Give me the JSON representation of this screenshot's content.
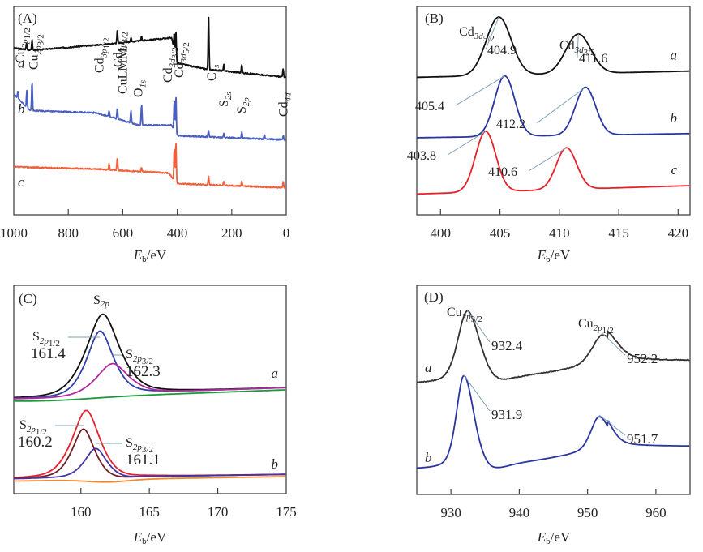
{
  "chart_data": [
    {
      "id": "A",
      "type": "line",
      "panel_label": "(A)",
      "title": "",
      "xlabel": "E_b/eV",
      "xlabel_main": "E",
      "xlabel_sub": "b",
      "xlabel_rest": "/eV",
      "ylabel": "",
      "xlim": [
        1000,
        0
      ],
      "x_reversed": true,
      "xticks": [
        1000,
        800,
        600,
        400,
        200,
        0
      ],
      "xtick_labels": [
        "1000",
        "800",
        "600",
        "400",
        "200",
        "0"
      ],
      "grid": false,
      "series": [
        {
          "name": "a",
          "color": "#111111",
          "baseline": [
            [
              1000,
              0.8
            ],
            [
              930,
              0.79
            ],
            [
              650,
              0.82
            ],
            [
              420,
              0.85
            ],
            [
              405,
              0.73
            ],
            [
              300,
              0.7
            ],
            [
              0,
              0.66
            ]
          ],
          "peaks": [
            [
              953,
              0.03
            ],
            [
              933,
              0.05
            ],
            [
              620,
              0.06
            ],
            [
              570,
              0.02
            ],
            [
              531,
              0.02
            ],
            [
              411,
              0.1
            ],
            [
              405,
              0.15
            ],
            [
              285,
              0.26
            ],
            [
              229,
              0.03
            ],
            [
              163,
              0.04
            ],
            [
              11,
              0.04
            ]
          ]
        },
        {
          "name": "b",
          "color": "#4a5fbf",
          "baseline": [
            [
              1000,
              0.58
            ],
            [
              940,
              0.5
            ],
            [
              700,
              0.49
            ],
            [
              540,
              0.43
            ],
            [
              420,
              0.43
            ],
            [
              405,
              0.38
            ],
            [
              0,
              0.36
            ]
          ],
          "peaks": [
            [
              985,
              0.03
            ],
            [
              952,
              0.08
            ],
            [
              933,
              0.14
            ],
            [
              650,
              0.03
            ],
            [
              620,
              0.05
            ],
            [
              570,
              0.06
            ],
            [
              531,
              0.1
            ],
            [
              411,
              0.15
            ],
            [
              405,
              0.19
            ],
            [
              285,
              0.03
            ],
            [
              229,
              0.02
            ],
            [
              163,
              0.03
            ],
            [
              80,
              0.02
            ],
            [
              11,
              0.02
            ]
          ]
        },
        {
          "name": "c",
          "color": "#f0603c",
          "baseline": [
            [
              1000,
              0.23
            ],
            [
              700,
              0.22
            ],
            [
              430,
              0.2
            ],
            [
              405,
              0.15
            ],
            [
              0,
              0.13
            ]
          ],
          "peaks": [
            [
              650,
              0.03
            ],
            [
              620,
              0.06
            ],
            [
              531,
              0.02
            ],
            [
              411,
              0.16
            ],
            [
              405,
              0.2
            ],
            [
              285,
              0.04
            ],
            [
              229,
              0.02
            ],
            [
              163,
              0.02
            ],
            [
              11,
              0.03
            ]
          ]
        }
      ],
      "annotations": [
        {
          "main": "Cu",
          "sub": "2p",
          "subsub": "1/2",
          "x": 953
        },
        {
          "main": "Cu",
          "sub": "2p",
          "subsub": "3/2",
          "x": 933
        },
        {
          "main": "Cd",
          "sub": "3p",
          "subsub": "1/2",
          "x": 651
        },
        {
          "main": "Cd",
          "sub": "3p",
          "subsub": "3/2",
          "x": 618
        },
        {
          "main": "CuLMM",
          "sub": "",
          "subsub": "",
          "x": 570
        },
        {
          "main": "O",
          "sub": "1s",
          "subsub": "",
          "x": 531
        },
        {
          "main": "Cd",
          "sub": "3d",
          "subsub": "3/2",
          "x": 411
        },
        {
          "main": "Cd",
          "sub": "3d",
          "subsub": "5/2",
          "x": 405
        },
        {
          "main": "C",
          "sub": "1s",
          "subsub": "",
          "x": 285
        },
        {
          "main": "S",
          "sub": "2s",
          "subsub": "",
          "x": 229
        },
        {
          "main": "S",
          "sub": "2p",
          "subsub": "",
          "x": 163
        },
        {
          "main": "Cd",
          "sub": "4d",
          "subsub": "",
          "x": 11
        }
      ]
    },
    {
      "id": "B",
      "type": "line",
      "panel_label": "(B)",
      "title": "",
      "xlabel": "E_b/eV",
      "xlabel_main": "E",
      "xlabel_sub": "b",
      "xlabel_rest": "/eV",
      "ylabel": "",
      "xlim": [
        398,
        421
      ],
      "xticks": [
        400,
        405,
        410,
        415,
        420
      ],
      "xtick_labels": [
        "400",
        "405",
        "410",
        "415",
        "420"
      ],
      "grid": false,
      "peak_titles": [
        {
          "main": "Cd",
          "sub": "3d",
          "subsub": "5/2"
        },
        {
          "main": "Cd",
          "sub": "3d",
          "subsub": "3/2"
        }
      ],
      "series": [
        {
          "name": "a",
          "color": "#111111",
          "offset": 0.66,
          "slope": 0.03,
          "peaks": [
            {
              "x": 404.9,
              "h": 0.28,
              "w": 1.05
            },
            {
              "x": 411.6,
              "h": 0.19,
              "w": 1.05
            }
          ],
          "peak_labels": [
            "404.9",
            "411.6"
          ]
        },
        {
          "name": "b",
          "color": "#2a35a0",
          "offset": 0.37,
          "slope": 0.02,
          "peaks": [
            {
              "x": 405.4,
              "h": 0.29,
              "w": 0.85
            },
            {
              "x": 412.2,
              "h": 0.23,
              "w": 0.85
            }
          ],
          "peak_labels": [
            "405.4",
            "412.2"
          ]
        },
        {
          "name": "c",
          "color": "#e8202a",
          "offset": 0.1,
          "slope": 0.04,
          "peaks": [
            {
              "x": 403.8,
              "h": 0.29,
              "w": 0.85
            },
            {
              "x": 410.6,
              "h": 0.2,
              "w": 0.85
            }
          ],
          "peak_labels": [
            "403.8",
            "410.6"
          ]
        }
      ]
    },
    {
      "id": "C",
      "type": "line",
      "panel_label": "(C)",
      "title": "S_2p",
      "title_main": "S",
      "title_sub": "2p",
      "xlabel": "E_b/eV",
      "xlabel_main": "E",
      "xlabel_sub": "b",
      "xlabel_rest": "/eV",
      "ylabel": "",
      "xlim": [
        155.1,
        175
      ],
      "xticks": [
        160,
        165,
        170,
        175
      ],
      "xtick_labels": [
        "160",
        "165",
        "170",
        "175"
      ],
      "grid": false,
      "groups": [
        {
          "name": "a",
          "base": 0.46,
          "slope": 0.022,
          "components": [
            {
              "name": "envelope",
              "color": "#111111",
              "x": 161.6,
              "h": 0.39,
              "w": 1.25
            },
            {
              "name": "S2p1/2",
              "color": "#2e3fa5",
              "x": 161.4,
              "h": 0.31,
              "w": 1.0
            },
            {
              "name": "S2p3/2",
              "color": "#b02a9a",
              "x": 162.3,
              "h": 0.15,
              "w": 1.2
            },
            {
              "name": "background",
              "color": "#1a9a3a",
              "x": 0,
              "h": 0,
              "w": 1
            }
          ],
          "labels": [
            {
              "main": "S",
              "sub": "2p",
              "subsub": "1/2",
              "value": "161.4"
            },
            {
              "main": "S",
              "sub": "2p",
              "subsub": "3/2",
              "value": "162.3"
            }
          ]
        },
        {
          "name": "b",
          "base": 0.07,
          "slope": 0.01,
          "components": [
            {
              "name": "envelope",
              "color": "#e8202a",
              "x": 160.4,
              "h": 0.33,
              "w": 1.05
            },
            {
              "name": "S2p1/2",
              "color": "#6e1f26",
              "x": 160.2,
              "h": 0.24,
              "w": 0.85
            },
            {
              "name": "S2p3/2",
              "color": "#4533a8",
              "x": 161.1,
              "h": 0.15,
              "w": 0.85
            },
            {
              "name": "background",
              "color": "#f08a30",
              "x": 0,
              "h": 0,
              "w": 1
            }
          ],
          "labels": [
            {
              "main": "S",
              "sub": "2p",
              "subsub": "1/2",
              "value": "160.2"
            },
            {
              "main": "S",
              "sub": "2p",
              "subsub": "3/2",
              "value": "161.1"
            }
          ]
        }
      ]
    },
    {
      "id": "D",
      "type": "line",
      "panel_label": "(D)",
      "title": "",
      "xlabel": "E_b/eV",
      "xlabel_main": "E",
      "xlabel_sub": "b",
      "xlabel_rest": "/eV",
      "ylabel": "",
      "xlim": [
        925,
        965
      ],
      "xticks": [
        930,
        940,
        950,
        960
      ],
      "xtick_labels": [
        "930",
        "940",
        "950",
        "960"
      ],
      "grid": false,
      "peak_titles": [
        {
          "main": "Cu",
          "sub": "2p",
          "subsub": "3/2"
        },
        {
          "main": "Cu",
          "sub": "2p",
          "subsub": "1/2"
        }
      ],
      "series": [
        {
          "name": "a",
          "color": "#333333",
          "offset": 0.53,
          "peaks": [
            {
              "x": 932.4,
              "h": 0.35,
              "w": 1.4
            },
            {
              "x": 952.2,
              "h": 0.15,
              "w": 1.5
            }
          ],
          "peak_labels": [
            "932.4",
            "952.2"
          ]
        },
        {
          "name": "b",
          "color": "#2a35a0",
          "offset": 0.12,
          "peaks": [
            {
              "x": 931.9,
              "h": 0.45,
              "w": 1.1
            },
            {
              "x": 951.7,
              "h": 0.17,
              "w": 1.2
            }
          ],
          "peak_labels": [
            "931.9",
            "951.7"
          ]
        }
      ]
    }
  ]
}
